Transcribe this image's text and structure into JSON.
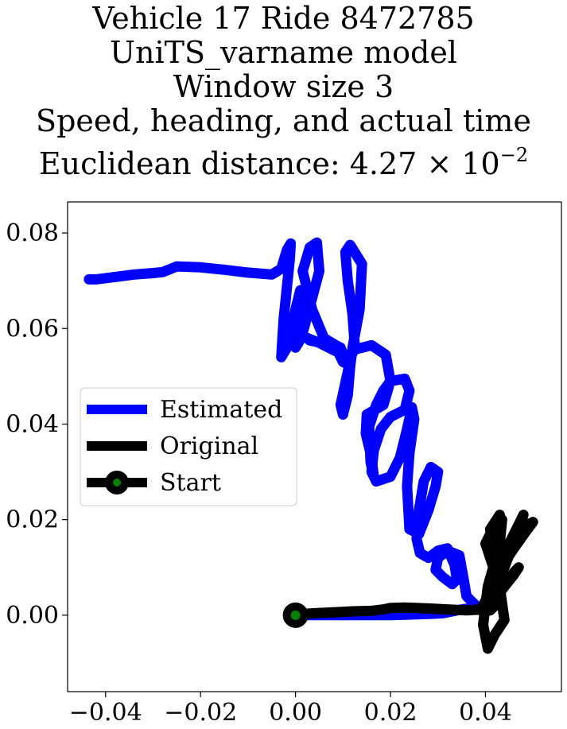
{
  "title": {
    "line1": "Vehicle 17 Ride 8472785",
    "line2": "UniTS_varname model",
    "line3": "Window size 3",
    "line4": "Speed, heading, and actual time",
    "line5_prefix": "Euclidean distance: 4.27",
    "line5_times": "×",
    "line5_base": "10",
    "line5_exp": "−2"
  },
  "chart_data": {
    "type": "line",
    "xlabel": "",
    "ylabel": "",
    "xlim": [
      -0.048,
      0.056
    ],
    "ylim": [
      -0.016,
      0.0865
    ],
    "xticks": [
      -0.04,
      -0.02,
      0.0,
      0.02,
      0.04
    ],
    "xtick_labels": [
      "−0.04",
      "−0.02",
      "0.00",
      "0.02",
      "0.04"
    ],
    "yticks": [
      0.0,
      0.02,
      0.04,
      0.06,
      0.08
    ],
    "ytick_labels": [
      "0.00",
      "0.02",
      "0.04",
      "0.06",
      "0.08"
    ],
    "grid": false,
    "legend": {
      "position": "center-left",
      "entries": [
        "Estimated",
        "Original",
        "Start"
      ]
    },
    "series": [
      {
        "name": "Estimated",
        "color": "#0000ff",
        "x": [
          -0.0435,
          -0.042,
          -0.038,
          -0.034,
          -0.03,
          -0.028,
          -0.025,
          -0.02,
          -0.015,
          -0.01,
          -0.005,
          -0.003,
          -0.0018,
          -0.001,
          -0.0012,
          -0.0025,
          -0.003,
          -0.0015,
          0.0,
          0.001,
          0.0015,
          0.001,
          0.0,
          0.0012,
          0.003,
          0.005,
          0.0045,
          0.003,
          0.0015,
          0.0035,
          0.006,
          0.0085,
          0.0095,
          0.01,
          0.008,
          0.003,
          0.0025,
          0.005,
          0.007,
          0.009,
          0.01,
          0.011,
          0.0125,
          0.012,
          0.011,
          0.0105,
          0.0115,
          0.014,
          0.0135,
          0.012,
          0.0115,
          0.011,
          0.01,
          0.0095,
          0.012,
          0.016,
          0.019,
          0.02,
          0.0185,
          0.015,
          0.0148,
          0.016,
          0.0165,
          0.0158,
          0.0155,
          0.017,
          0.0185,
          0.02,
          0.023,
          0.024,
          0.023,
          0.02,
          0.018,
          0.0165,
          0.016,
          0.017,
          0.02,
          0.022,
          0.0235,
          0.0245,
          0.025,
          0.024,
          0.0235,
          0.024,
          0.026,
          0.028,
          0.0295,
          0.03,
          0.0285,
          0.027,
          0.026,
          0.0255,
          0.0262,
          0.028,
          0.03,
          0.032,
          0.0335,
          0.034,
          0.033,
          0.031,
          0.0295,
          0.03,
          0.032,
          0.0345,
          0.0355,
          0.036,
          0.0375,
          0.038,
          0.037,
          0.035,
          0.033,
          0.032,
          0.031,
          0.029,
          0.026,
          0.023,
          0.02,
          0.017,
          0.014,
          0.01,
          0.006,
          0.003,
          0.001
        ],
        "y": [
          0.0703,
          0.0703,
          0.0708,
          0.0713,
          0.0716,
          0.0718,
          0.073,
          0.0728,
          0.0723,
          0.0717,
          0.0713,
          0.0725,
          0.0765,
          0.0778,
          0.0745,
          0.062,
          0.054,
          0.0565,
          0.064,
          0.068,
          0.0665,
          0.06,
          0.056,
          0.058,
          0.0645,
          0.072,
          0.078,
          0.077,
          0.072,
          0.064,
          0.058,
          0.0565,
          0.056,
          0.0545,
          0.0565,
          0.0575,
          0.058,
          0.057,
          0.056,
          0.055,
          0.053,
          0.0525,
          0.056,
          0.063,
          0.07,
          0.076,
          0.0775,
          0.0735,
          0.064,
          0.056,
          0.052,
          0.046,
          0.042,
          0.044,
          0.0555,
          0.0565,
          0.0545,
          0.049,
          0.044,
          0.042,
          0.038,
          0.033,
          0.029,
          0.032,
          0.0395,
          0.044,
          0.047,
          0.049,
          0.0495,
          0.047,
          0.043,
          0.0415,
          0.039,
          0.0345,
          0.03,
          0.028,
          0.029,
          0.033,
          0.039,
          0.0435,
          0.041,
          0.034,
          0.027,
          0.018,
          0.017,
          0.022,
          0.027,
          0.03,
          0.031,
          0.028,
          0.022,
          0.016,
          0.013,
          0.012,
          0.0135,
          0.014,
          0.0105,
          0.0075,
          0.0065,
          0.008,
          0.0095,
          0.012,
          0.0135,
          0.0125,
          0.007,
          0.004,
          0.0025,
          0.002,
          0.0015,
          0.0012,
          0.0008,
          0.0006,
          0.0004,
          0.0003,
          0.0002,
          0.0001,
          0.0,
          0.0,
          0.0,
          0.0,
          0.0,
          0.0,
          0.0
        ]
      },
      {
        "name": "Original",
        "color": "#000000",
        "x": [
          0.0,
          0.001,
          0.004,
          0.008,
          0.012,
          0.016,
          0.0185,
          0.02,
          0.023,
          0.028,
          0.032,
          0.036,
          0.039,
          0.04,
          0.042,
          0.041,
          0.043,
          0.04,
          0.043,
          0.044,
          0.042,
          0.0405,
          0.0395,
          0.0405,
          0.0425,
          0.0435,
          0.043,
          0.0415,
          0.041,
          0.042,
          0.044,
          0.0455,
          0.047,
          0.049,
          0.05,
          0.0485,
          0.046,
          0.044,
          0.042,
          0.041,
          0.043,
          0.045,
          0.047,
          0.048,
          0.047,
          0.045,
          0.043,
          0.042,
          0.044,
          0.046,
          0.047,
          0.046,
          0.044,
          0.0425,
          0.0415,
          0.041,
          0.042
        ],
        "y": [
          0.0,
          0.0002,
          0.0004,
          0.0006,
          0.0008,
          0.0009,
          0.0012,
          0.0015,
          0.0016,
          0.0014,
          0.0012,
          0.001,
          0.0012,
          0.003,
          0.01,
          0.018,
          0.021,
          0.015,
          0.006,
          -0.001,
          -0.004,
          -0.007,
          -0.002,
          0.006,
          0.013,
          0.02,
          0.015,
          0.009,
          0.005,
          0.006,
          0.01,
          0.014,
          0.017,
          0.019,
          0.0195,
          0.0175,
          0.014,
          0.011,
          0.008,
          0.006,
          0.009,
          0.013,
          0.018,
          0.021,
          0.019,
          0.015,
          0.011,
          0.008,
          0.006,
          0.009,
          0.01,
          0.0085,
          0.006,
          0.004,
          0.002,
          0.001,
          0.002
        ]
      }
    ],
    "start_point": {
      "name": "Start",
      "x": 0.0,
      "y": 0.0,
      "marker_edge_color": "#000000",
      "marker_face_color": "#008000"
    }
  }
}
